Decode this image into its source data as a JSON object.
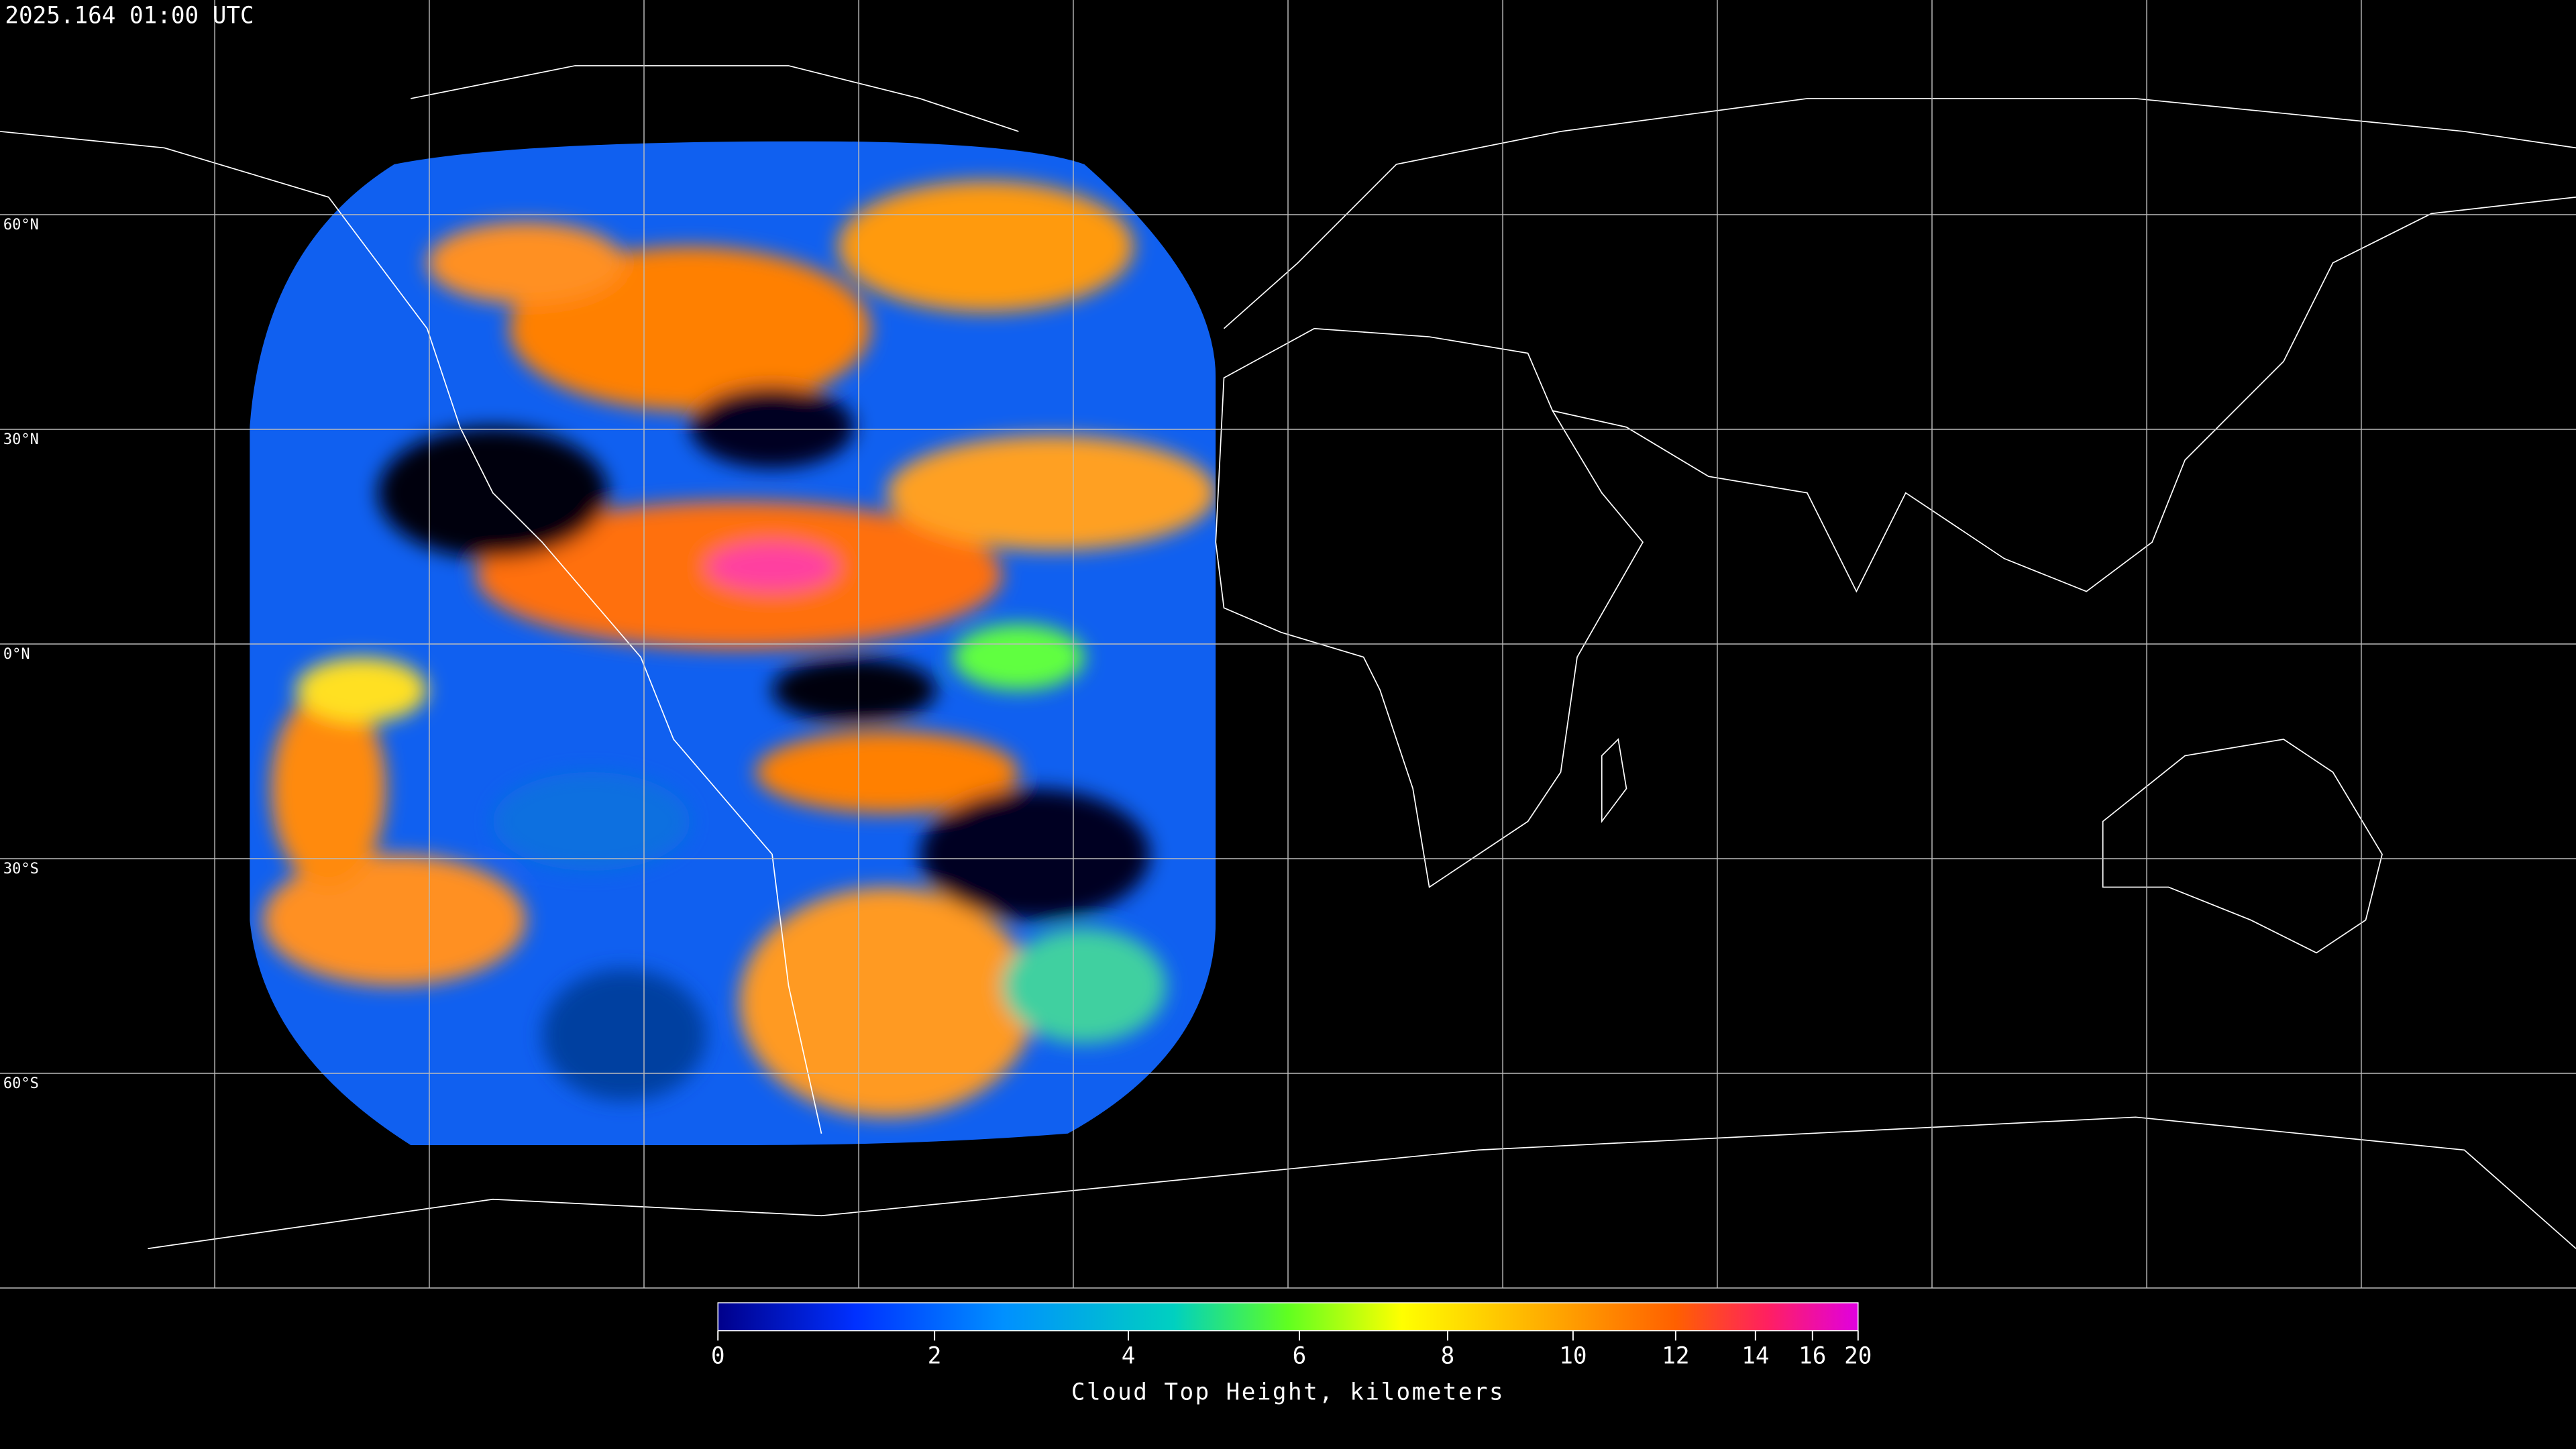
{
  "header": {
    "title": "2025.164 01:00 UTC"
  },
  "map": {
    "latitudes": [
      {
        "value": 60,
        "label": "60°N"
      },
      {
        "value": 30,
        "label": "30°N"
      },
      {
        "value": 0,
        "label": "0°N"
      },
      {
        "value": -30,
        "label": "30°S"
      },
      {
        "value": -60,
        "label": "60°S"
      }
    ]
  },
  "colorbar": {
    "lim": [
      0,
      20
    ],
    "ticks": [
      0,
      2,
      4,
      6,
      8,
      10,
      12,
      14,
      16,
      20
    ],
    "label": "Cloud Top Height, kilometers"
  }
}
